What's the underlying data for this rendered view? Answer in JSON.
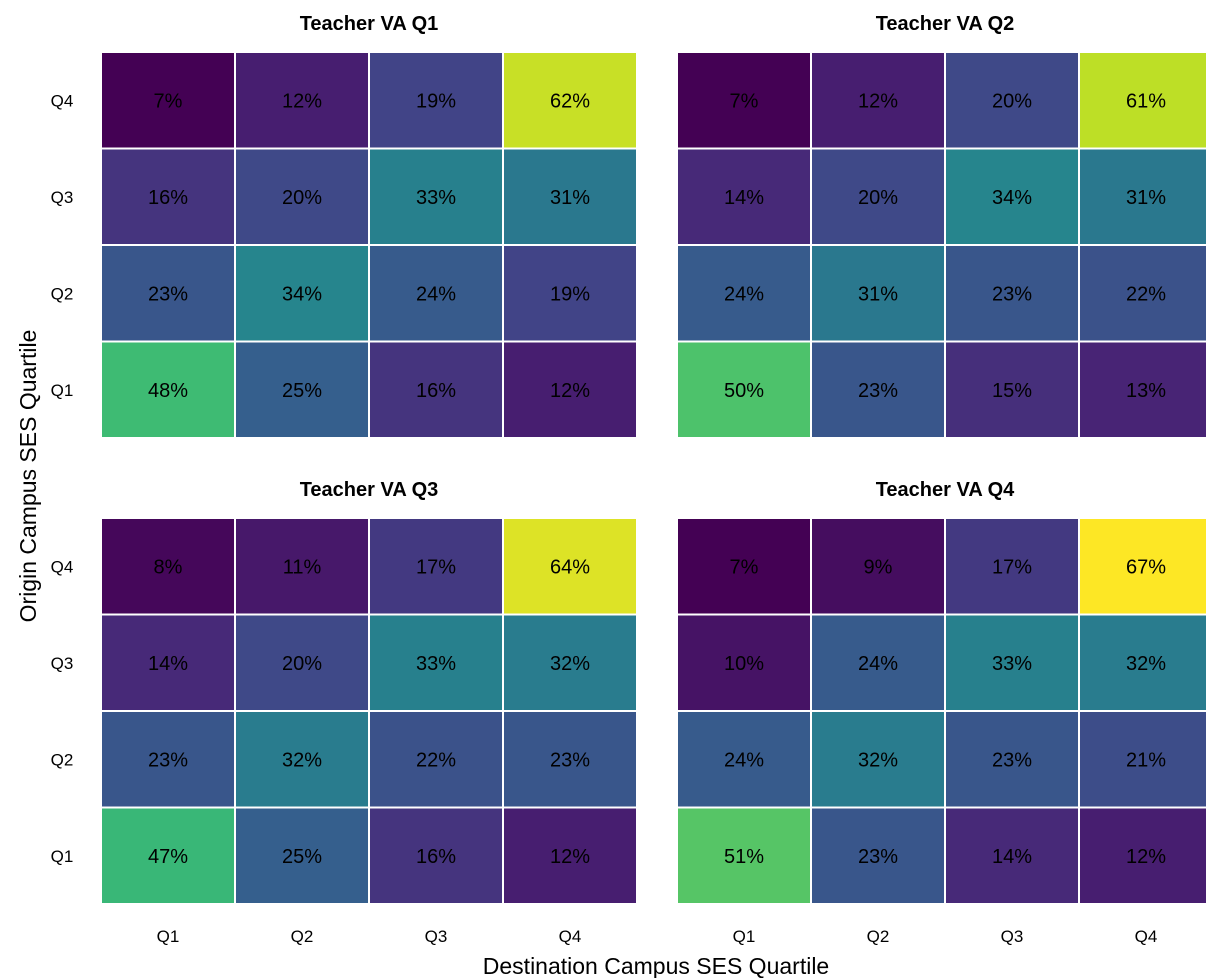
{
  "chart_data": {
    "type": "heatmap",
    "xlabel": "Destination Campus SES Quartile",
    "ylabel": "Origin Campus SES Quartile",
    "x_categories": [
      "Q1",
      "Q2",
      "Q3",
      "Q4"
    ],
    "y_categories_top_to_bottom": [
      "Q4",
      "Q3",
      "Q2",
      "Q1"
    ],
    "value_format": "percent",
    "colormap": "viridis",
    "color_range": [
      7,
      67
    ],
    "panels": [
      {
        "title": "Teacher VA Q1",
        "values": [
          [
            7,
            12,
            19,
            62
          ],
          [
            16,
            20,
            33,
            31
          ],
          [
            23,
            34,
            24,
            19
          ],
          [
            48,
            25,
            16,
            12
          ]
        ]
      },
      {
        "title": "Teacher VA Q2",
        "values": [
          [
            7,
            12,
            20,
            61
          ],
          [
            14,
            20,
            34,
            31
          ],
          [
            24,
            31,
            23,
            22
          ],
          [
            50,
            23,
            15,
            13
          ]
        ]
      },
      {
        "title": "Teacher VA Q3",
        "values": [
          [
            8,
            11,
            17,
            64
          ],
          [
            14,
            20,
            33,
            32
          ],
          [
            23,
            32,
            22,
            23
          ],
          [
            47,
            25,
            16,
            12
          ]
        ]
      },
      {
        "title": "Teacher VA Q4",
        "values": [
          [
            7,
            9,
            17,
            67
          ],
          [
            10,
            24,
            33,
            32
          ],
          [
            24,
            32,
            23,
            21
          ],
          [
            51,
            23,
            14,
            12
          ]
        ]
      }
    ]
  }
}
